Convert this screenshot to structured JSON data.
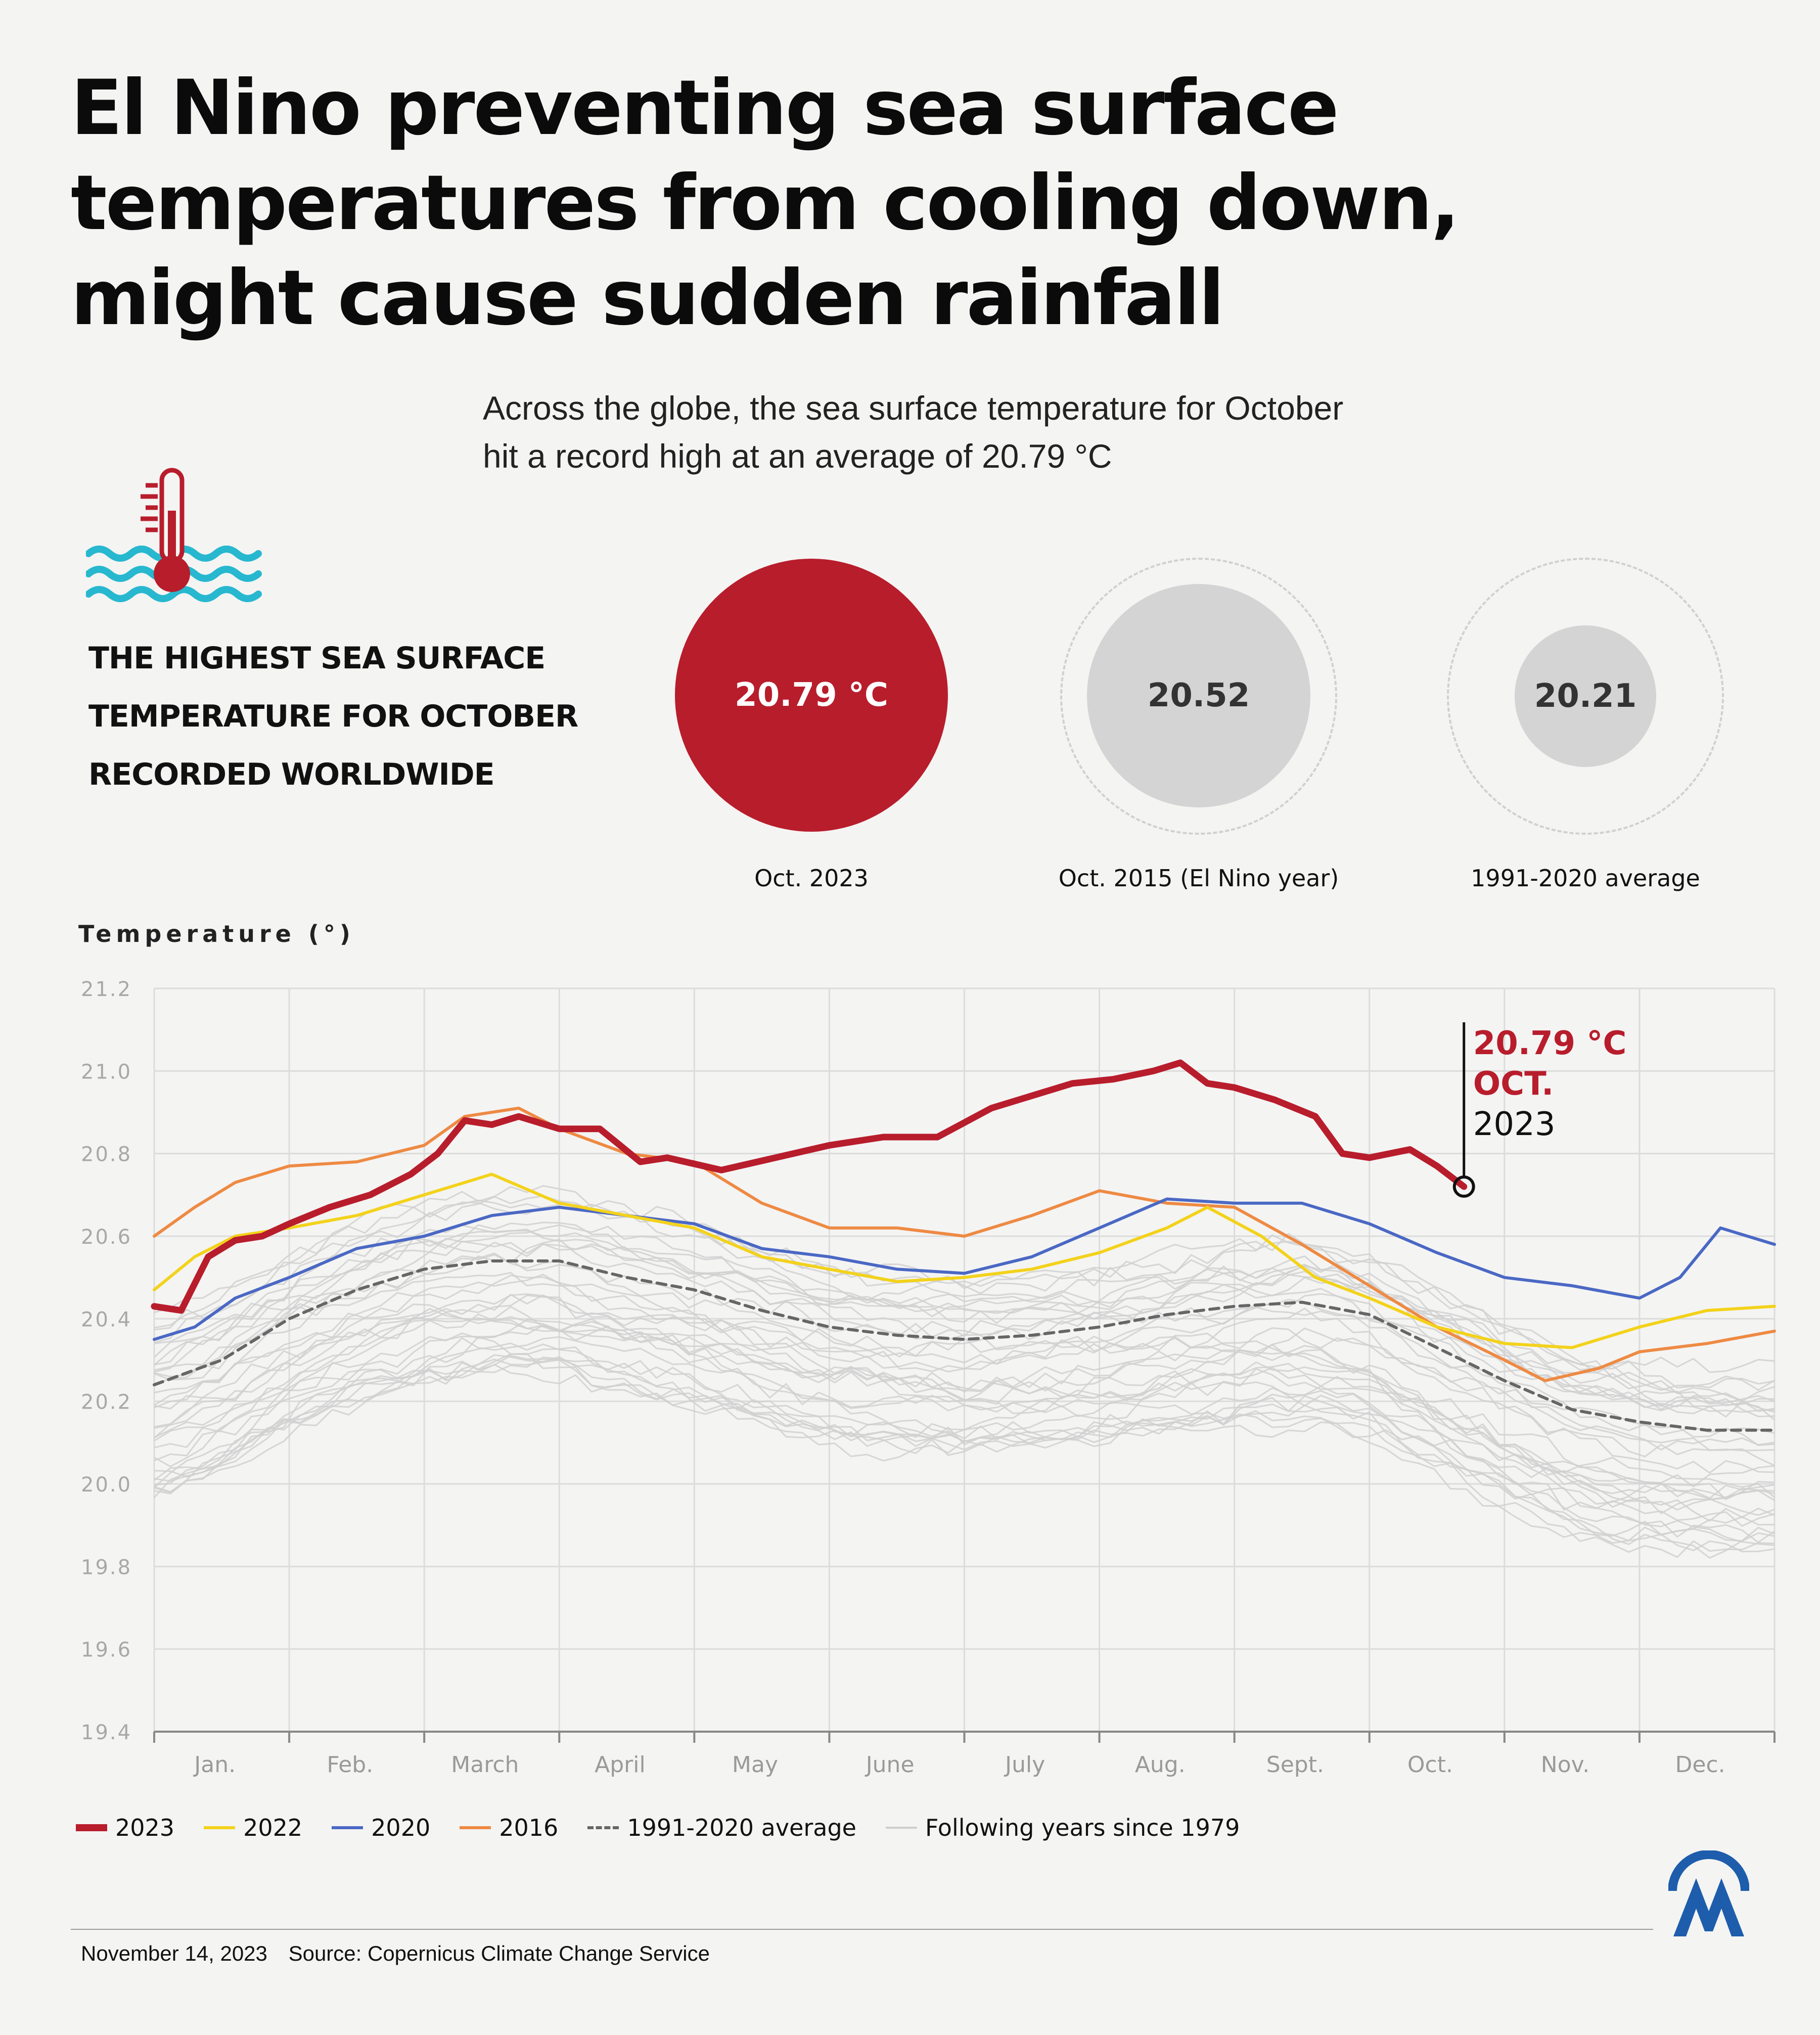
{
  "title_lines": [
    "El Nino preventing sea surface",
    "temperatures from cooling down,",
    "might cause sudden rainfall"
  ],
  "subtitle_lines": [
    "Across the globe, the sea surface temperature for October",
    "hit a record high at an average of 20.79 °C"
  ],
  "headline_lines": [
    "THE HIGHEST SEA SURFACE",
    "TEMPERATURE FOR OCTOBER",
    "RECORDED WORLDWIDE"
  ],
  "stats": [
    {
      "value": "20.79 °C",
      "label": "Oct. 2023"
    },
    {
      "value": "20.52",
      "label": "Oct. 2015 (El Nino year)"
    },
    {
      "value": "20.21",
      "label": "1991-2020 average"
    }
  ],
  "colors": {
    "y2023": "#b81d2c",
    "y2022": "#f3d21a",
    "y2020": "#4a68c4",
    "y2016": "#ee8a43",
    "avg": "#666666",
    "other": "#d0d0d0",
    "stat_grey": "#d4d4d4",
    "wave": "#27b8cf"
  },
  "chart_data": {
    "type": "line",
    "ylabel": "Temperature (°)",
    "ylim": [
      19.4,
      21.2
    ],
    "yticks": [
      "21.2",
      "21.0",
      "20.8",
      "20.6",
      "20.4",
      "20.2",
      "20.0",
      "19.8",
      "19.6",
      "19.4"
    ],
    "months": [
      "Jan.",
      "Feb.",
      "March",
      "April",
      "May",
      "June",
      "July",
      "Aug.",
      "Sept.",
      "Oct.",
      "Nov.",
      "Dec."
    ],
    "series": [
      {
        "name": "2023",
        "x": [
          0,
          0.2,
          0.4,
          0.6,
          0.8,
          1.0,
          1.3,
          1.6,
          1.9,
          2.1,
          2.3,
          2.5,
          2.7,
          3.0,
          3.3,
          3.6,
          3.8,
          4.2,
          4.6,
          5.0,
          5.4,
          5.8,
          6.2,
          6.5,
          6.8,
          7.1,
          7.4,
          7.6,
          7.8,
          8.0,
          8.3,
          8.6,
          8.8,
          9.0,
          9.3,
          9.5,
          9.7
        ],
        "values": [
          20.43,
          20.42,
          20.55,
          20.59,
          20.6,
          20.63,
          20.67,
          20.7,
          20.75,
          20.8,
          20.88,
          20.87,
          20.89,
          20.86,
          20.86,
          20.78,
          20.79,
          20.76,
          20.79,
          20.82,
          20.84,
          20.84,
          20.91,
          20.94,
          20.97,
          20.98,
          21.0,
          21.02,
          20.97,
          20.96,
          20.93,
          20.89,
          20.8,
          20.79,
          20.81,
          20.77,
          20.72
        ]
      },
      {
        "name": "2022",
        "x": [
          0,
          0.3,
          0.6,
          1.0,
          1.5,
          2.0,
          2.5,
          3.0,
          3.5,
          4.0,
          4.5,
          5.0,
          5.5,
          6.0,
          6.5,
          7.0,
          7.5,
          7.8,
          8.2,
          8.6,
          9.0,
          9.5,
          10.0,
          10.5,
          11.0,
          11.5,
          12.0
        ],
        "values": [
          20.47,
          20.55,
          20.6,
          20.62,
          20.65,
          20.7,
          20.75,
          20.68,
          20.65,
          20.62,
          20.55,
          20.52,
          20.49,
          20.5,
          20.52,
          20.56,
          20.62,
          20.67,
          20.6,
          20.5,
          20.45,
          20.38,
          20.34,
          20.33,
          20.38,
          20.42,
          20.43
        ]
      },
      {
        "name": "2020",
        "x": [
          0,
          0.3,
          0.6,
          1.0,
          1.5,
          2.0,
          2.5,
          3.0,
          3.5,
          4.0,
          4.5,
          5.0,
          5.5,
          6.0,
          6.5,
          7.0,
          7.5,
          8.0,
          8.5,
          9.0,
          9.5,
          10.0,
          10.5,
          11.0,
          11.3,
          11.6,
          12.0
        ],
        "values": [
          20.35,
          20.38,
          20.45,
          20.5,
          20.57,
          20.6,
          20.65,
          20.67,
          20.65,
          20.63,
          20.57,
          20.55,
          20.52,
          20.51,
          20.55,
          20.62,
          20.69,
          20.68,
          20.68,
          20.63,
          20.56,
          20.5,
          20.48,
          20.45,
          20.5,
          20.62,
          20.58
        ]
      },
      {
        "name": "2016",
        "x": [
          0,
          0.3,
          0.6,
          1.0,
          1.5,
          2.0,
          2.3,
          2.7,
          3.0,
          3.5,
          4.0,
          4.5,
          5.0,
          5.5,
          6.0,
          6.5,
          7.0,
          7.5,
          8.0,
          8.5,
          9.0,
          9.5,
          10.0,
          10.3,
          10.7,
          11.0,
          11.5,
          12.0
        ],
        "values": [
          20.6,
          20.67,
          20.73,
          20.77,
          20.78,
          20.82,
          20.89,
          20.91,
          20.86,
          20.8,
          20.78,
          20.68,
          20.62,
          20.62,
          20.6,
          20.65,
          20.71,
          20.68,
          20.67,
          20.58,
          20.48,
          20.38,
          20.3,
          20.25,
          20.28,
          20.32,
          20.34,
          20.37
        ]
      },
      {
        "name": "1991-2020 average",
        "x": [
          0,
          0.5,
          1.0,
          1.5,
          2.0,
          2.5,
          3.0,
          3.5,
          4.0,
          4.5,
          5.0,
          5.5,
          6.0,
          6.5,
          7.0,
          7.5,
          8.0,
          8.5,
          9.0,
          9.5,
          10.0,
          10.5,
          11.0,
          11.5,
          12.0
        ],
        "values": [
          20.24,
          20.3,
          20.4,
          20.47,
          20.52,
          20.54,
          20.54,
          20.5,
          20.47,
          20.42,
          20.38,
          20.36,
          20.35,
          20.36,
          20.38,
          20.41,
          20.43,
          20.44,
          20.41,
          20.33,
          20.25,
          20.18,
          20.15,
          20.13,
          20.13
        ]
      }
    ],
    "annotation": {
      "value": "20.79 °C",
      "month": "OCT.",
      "year": "2023"
    },
    "legend": [
      "2023",
      "2022",
      "2020",
      "2016",
      "1991-2020 average",
      "Following years since 1979"
    ]
  },
  "footer": {
    "date": "November 14, 2023",
    "source": "Source: Copernicus Climate Change Service"
  }
}
